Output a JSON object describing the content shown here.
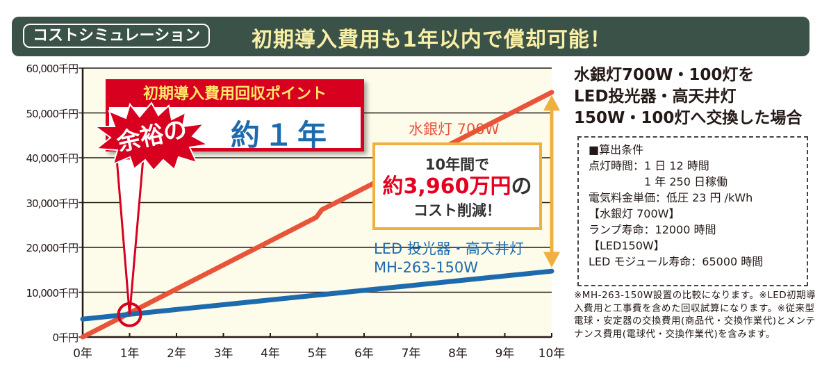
{
  "header": {
    "tag": "コストシミュレーション",
    "title": "初期導入費用も1年以内で償却可能！"
  },
  "callout": {
    "title": "初期導入費用回収ポイント",
    "burst": "余裕の",
    "value": "約１年"
  },
  "savings": {
    "line1": "10年間で",
    "amount": "約3,960万円",
    "suffix": "の",
    "line3": "コスト削減！"
  },
  "right_title": [
    "水銀灯700W・100灯を",
    "LED投光器・高天井灯",
    "150W・100灯へ交換した場合"
  ],
  "conditions": [
    "■算出条件",
    "点灯時間：1 日 12 時間",
    "　　　　　1 年 250 日稼働",
    "電気料金単価：低圧 23 円 /kWh",
    "【水銀灯 700W】",
    "ランプ寿命：12000 時間",
    "【LED150W】",
    "LED モジュール寿命：65000 時間"
  ],
  "notes": "※MH-263-150W設置の比較になります。※LED初期導入費用と工事費を含めた回収試算になります。※従来型電球・安定器の交換費用(商品代・交換作業代)とメンテナンス費用(電球代・交換作業代)を含みます。",
  "chart_data": {
    "type": "line",
    "x_ticks": [
      "0年",
      "1年",
      "2年",
      "3年",
      "4年",
      "5年",
      "6年",
      "7年",
      "8年",
      "9年",
      "10年"
    ],
    "y_ticks": [
      "0千円",
      "10,000千円",
      "20,000千円",
      "30,000千円",
      "40,000千円",
      "50,000千円",
      "60,000千円"
    ],
    "xlim": [
      0,
      10
    ],
    "ylim": [
      0,
      60000
    ],
    "grid": true,
    "series": [
      {
        "name": "水銀灯 700W",
        "color": "#e8543a",
        "points": [
          [
            0,
            0
          ],
          [
            4.98,
            26700
          ],
          [
            5.1,
            28400
          ],
          [
            10,
            54600
          ]
        ]
      },
      {
        "name_lines": [
          "LED 投光器・高天井灯",
          "MH-263-150W"
        ],
        "name": "LED 投光器・高天井灯 MH-263-150W",
        "color": "#1d6aac",
        "points": [
          [
            0,
            4000
          ],
          [
            10,
            14700
          ]
        ]
      }
    ],
    "payback_year": 1,
    "colors": {
      "header": "#3b5249",
      "plot_bg": "#fdfbea",
      "accent_red": "#d7001f",
      "arrow": "#f0b040"
    }
  }
}
